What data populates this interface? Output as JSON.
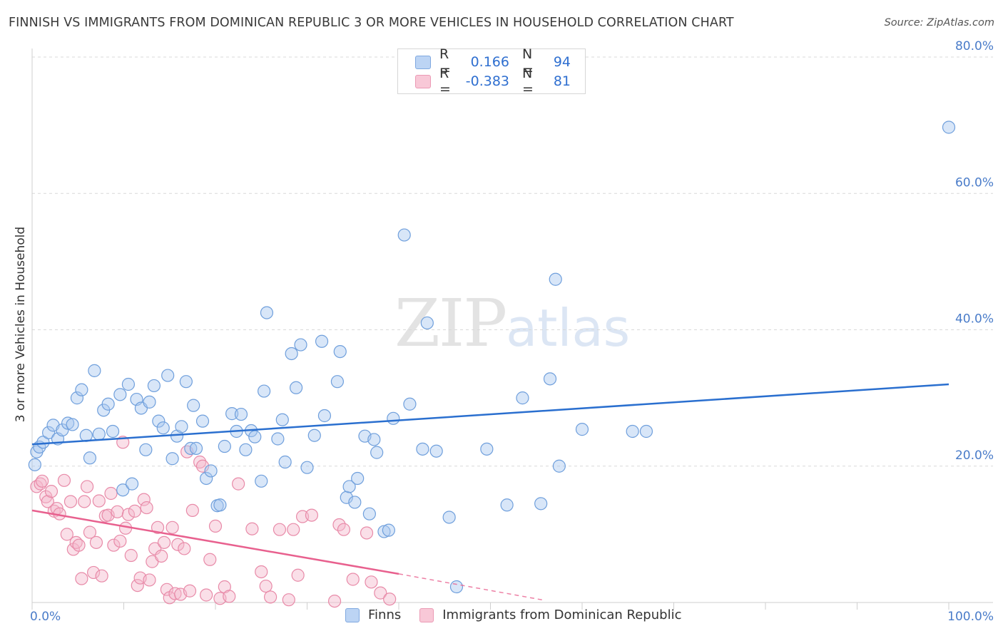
{
  "header": {
    "title": "FINNISH VS IMMIGRANTS FROM DOMINICAN REPUBLIC 3 OR MORE VEHICLES IN HOUSEHOLD CORRELATION CHART",
    "source": "Source: ZipAtlas.com"
  },
  "legend": {
    "rows": [
      {
        "r_label": "R =",
        "r_value": "0.166",
        "n_label": "N =",
        "n_value": "94",
        "color": "#a9c8f0"
      },
      {
        "r_label": "R =",
        "r_value": "-0.383",
        "n_label": "N =",
        "n_value": "81",
        "color": "#f5b8cb"
      }
    ]
  },
  "bottom_legend": {
    "finns": "Finns",
    "dominican": "Immigrants from Dominican Republic"
  },
  "watermark": {
    "zip": "ZIP",
    "atlas": "atlas"
  },
  "colors": {
    "finns_fill": "#a9c8f0",
    "finns_stroke": "#6f9fdc",
    "finns_line": "#2a6fcf",
    "dom_fill": "#f5b8cb",
    "dom_stroke": "#e88aa8",
    "dom_line": "#e8608e",
    "tick_text": "#4a7cc9",
    "grid": "#d9d9d9"
  },
  "chart_data": {
    "type": "scatter",
    "title": "FINNISH VS IMMIGRANTS FROM DOMINICAN REPUBLIC 3 OR MORE VEHICLES IN HOUSEHOLD CORRELATION CHART",
    "xlabel": "",
    "ylabel": "3 or more Vehicles in Household",
    "xlim": [
      0,
      100
    ],
    "ylim": [
      0,
      80
    ],
    "x_tick_labels": [
      "0.0%",
      "100.0%"
    ],
    "y_ticks": [
      20,
      40,
      60,
      80
    ],
    "y_tick_labels": [
      "20.0%",
      "40.0%",
      "60.0%",
      "80.0%"
    ],
    "grid": true,
    "series": [
      {
        "name": "Finns",
        "r": 0.166,
        "n": 94,
        "trend": {
          "x": [
            0,
            100
          ],
          "y": [
            23.2,
            32.0
          ]
        },
        "points": [
          [
            0.3,
            20.2
          ],
          [
            0.5,
            22.1
          ],
          [
            0.8,
            22.8
          ],
          [
            1.2,
            23.5
          ],
          [
            1.8,
            24.9
          ],
          [
            2.3,
            26.0
          ],
          [
            2.8,
            24.0
          ],
          [
            3.3,
            25.3
          ],
          [
            3.9,
            26.3
          ],
          [
            4.4,
            26.1
          ],
          [
            4.9,
            30.0
          ],
          [
            5.4,
            31.2
          ],
          [
            5.9,
            24.5
          ],
          [
            6.3,
            21.2
          ],
          [
            6.8,
            34.0
          ],
          [
            7.3,
            24.7
          ],
          [
            7.8,
            28.2
          ],
          [
            8.3,
            29.1
          ],
          [
            8.8,
            25.1
          ],
          [
            9.6,
            30.5
          ],
          [
            9.9,
            16.5
          ],
          [
            10.5,
            32.0
          ],
          [
            10.9,
            17.4
          ],
          [
            11.4,
            29.8
          ],
          [
            11.9,
            28.5
          ],
          [
            12.4,
            22.4
          ],
          [
            12.8,
            29.4
          ],
          [
            13.3,
            31.8
          ],
          [
            13.8,
            26.6
          ],
          [
            14.3,
            25.6
          ],
          [
            14.8,
            33.3
          ],
          [
            15.3,
            21.1
          ],
          [
            15.8,
            24.4
          ],
          [
            16.3,
            25.8
          ],
          [
            16.8,
            32.4
          ],
          [
            17.3,
            22.6
          ],
          [
            17.6,
            28.9
          ],
          [
            17.9,
            22.6
          ],
          [
            18.6,
            26.6
          ],
          [
            19.0,
            18.2
          ],
          [
            19.5,
            19.3
          ],
          [
            20.2,
            14.2
          ],
          [
            20.5,
            14.3
          ],
          [
            21.0,
            22.9
          ],
          [
            21.8,
            27.7
          ],
          [
            22.3,
            25.1
          ],
          [
            22.8,
            27.6
          ],
          [
            23.3,
            22.4
          ],
          [
            23.9,
            25.2
          ],
          [
            24.3,
            24.3
          ],
          [
            25.0,
            17.8
          ],
          [
            25.3,
            31.0
          ],
          [
            25.6,
            42.5
          ],
          [
            26.8,
            24.0
          ],
          [
            27.3,
            26.8
          ],
          [
            27.6,
            20.6
          ],
          [
            28.3,
            36.5
          ],
          [
            28.8,
            31.5
          ],
          [
            29.3,
            37.8
          ],
          [
            30.0,
            19.8
          ],
          [
            30.8,
            24.5
          ],
          [
            31.6,
            38.3
          ],
          [
            31.9,
            27.4
          ],
          [
            33.3,
            32.4
          ],
          [
            33.6,
            36.8
          ],
          [
            34.3,
            15.4
          ],
          [
            34.6,
            17.0
          ],
          [
            35.2,
            14.7
          ],
          [
            35.5,
            18.2
          ],
          [
            36.3,
            24.4
          ],
          [
            36.8,
            13.0
          ],
          [
            37.3,
            23.9
          ],
          [
            37.6,
            22.0
          ],
          [
            38.4,
            10.4
          ],
          [
            38.9,
            10.6
          ],
          [
            39.4,
            27.0
          ],
          [
            40.6,
            53.9
          ],
          [
            41.2,
            29.1
          ],
          [
            42.6,
            22.5
          ],
          [
            43.1,
            41.0
          ],
          [
            44.1,
            22.2
          ],
          [
            45.5,
            12.5
          ],
          [
            46.3,
            2.3
          ],
          [
            49.6,
            22.5
          ],
          [
            51.8,
            14.3
          ],
          [
            53.5,
            30.0
          ],
          [
            55.5,
            14.5
          ],
          [
            56.5,
            32.8
          ],
          [
            57.1,
            47.4
          ],
          [
            57.5,
            20.0
          ],
          [
            60.0,
            25.4
          ],
          [
            65.5,
            25.1
          ],
          [
            67.0,
            25.1
          ],
          [
            100.0,
            69.7
          ]
        ]
      },
      {
        "name": "Immigrants from Dominican Republic",
        "r": -0.383,
        "n": 81,
        "trend": {
          "x": [
            0,
            40
          ],
          "y": [
            13.5,
            4.2
          ]
        },
        "trend_dashed": {
          "x": [
            40,
            56
          ],
          "y": [
            4.2,
            0.3
          ]
        },
        "points": [
          [
            0.5,
            17.0
          ],
          [
            0.9,
            17.4
          ],
          [
            1.1,
            17.8
          ],
          [
            1.5,
            15.5
          ],
          [
            1.7,
            14.8
          ],
          [
            2.1,
            16.3
          ],
          [
            2.4,
            13.4
          ],
          [
            2.7,
            13.8
          ],
          [
            3.0,
            13.0
          ],
          [
            3.5,
            17.9
          ],
          [
            3.8,
            10.0
          ],
          [
            4.2,
            14.8
          ],
          [
            4.5,
            7.8
          ],
          [
            4.8,
            8.8
          ],
          [
            5.1,
            8.4
          ],
          [
            5.4,
            3.5
          ],
          [
            5.7,
            14.8
          ],
          [
            6.0,
            17.0
          ],
          [
            6.3,
            10.3
          ],
          [
            6.7,
            4.4
          ],
          [
            7.0,
            8.8
          ],
          [
            7.3,
            14.9
          ],
          [
            7.6,
            3.9
          ],
          [
            8.0,
            12.7
          ],
          [
            8.3,
            12.8
          ],
          [
            8.6,
            16.0
          ],
          [
            8.9,
            8.4
          ],
          [
            9.3,
            13.3
          ],
          [
            9.6,
            9.0
          ],
          [
            9.9,
            23.5
          ],
          [
            10.2,
            10.9
          ],
          [
            10.5,
            12.9
          ],
          [
            10.8,
            6.9
          ],
          [
            11.2,
            13.4
          ],
          [
            11.5,
            2.5
          ],
          [
            11.8,
            3.6
          ],
          [
            12.2,
            15.1
          ],
          [
            12.5,
            13.9
          ],
          [
            12.8,
            3.3
          ],
          [
            13.1,
            6.0
          ],
          [
            13.4,
            7.9
          ],
          [
            13.7,
            11.0
          ],
          [
            14.1,
            6.8
          ],
          [
            14.4,
            8.8
          ],
          [
            14.7,
            1.9
          ],
          [
            15.0,
            0.7
          ],
          [
            15.3,
            11.0
          ],
          [
            15.6,
            1.3
          ],
          [
            15.9,
            8.5
          ],
          [
            16.2,
            1.2
          ],
          [
            16.6,
            7.9
          ],
          [
            16.9,
            22.1
          ],
          [
            17.2,
            1.7
          ],
          [
            17.5,
            13.5
          ],
          [
            18.3,
            20.6
          ],
          [
            18.6,
            20.0
          ],
          [
            19.0,
            1.1
          ],
          [
            19.4,
            6.3
          ],
          [
            20.0,
            11.2
          ],
          [
            20.5,
            0.6
          ],
          [
            21.0,
            2.3
          ],
          [
            21.5,
            0.9
          ],
          [
            22.5,
            17.4
          ],
          [
            24.0,
            10.8
          ],
          [
            25.0,
            4.5
          ],
          [
            25.5,
            2.4
          ],
          [
            26.0,
            0.8
          ],
          [
            27.0,
            10.7
          ],
          [
            28.0,
            0.4
          ],
          [
            28.5,
            10.7
          ],
          [
            29.0,
            4.0
          ],
          [
            29.5,
            12.6
          ],
          [
            30.5,
            12.8
          ],
          [
            33.0,
            0.2
          ],
          [
            33.5,
            11.4
          ],
          [
            34.0,
            10.7
          ],
          [
            35.0,
            3.4
          ],
          [
            36.5,
            10.2
          ],
          [
            37.0,
            3.0
          ],
          [
            38.0,
            1.4
          ],
          [
            39.0,
            0.5
          ]
        ]
      }
    ]
  }
}
